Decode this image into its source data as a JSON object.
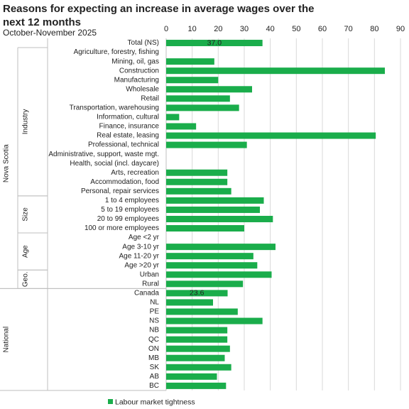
{
  "chart_data": {
    "type": "bar",
    "orientation": "horizontal",
    "title": "Reasons for expecting an increase in average wages over the next 12 months",
    "subtitle": "October-November 2025",
    "xlim": [
      0,
      90
    ],
    "x_ticks": [
      0,
      10,
      20,
      30,
      40,
      50,
      60,
      70,
      80,
      90
    ],
    "grid": true,
    "legend_position": "bottom-left",
    "bar_color": "#1aad4b",
    "groups": [
      {
        "level": 1,
        "label": "Nova Scotia",
        "start": 0,
        "end": 26
      },
      {
        "level": 1,
        "label": "National",
        "start": 27,
        "end": 37
      },
      {
        "level": 2,
        "label": "Industry",
        "start": 1,
        "end": 16
      },
      {
        "level": 2,
        "label": "Size",
        "start": 17,
        "end": 20
      },
      {
        "level": 2,
        "label": "Age",
        "start": 21,
        "end": 24
      },
      {
        "level": 2,
        "label": "Geo.",
        "start": 25,
        "end": 26
      }
    ],
    "categories": [
      "Total (NS)",
      "Agriculture, forestry, fishing",
      "Mining, oil, gas",
      "Construction",
      "Manufacturing",
      "Wholesale",
      "Retail",
      "Transportation, warehousing",
      "Information, cultural",
      "Finance, insurance",
      "Real estate, leasing",
      "Professional, technical",
      "Administrative, support, waste mgt.",
      "Health, social (incl. daycare)",
      "Arts, recreation",
      "Accommodation, food",
      "Personal, repair services",
      "1 to 4 employees",
      "5 to 19 employees",
      "20 to 99 employees",
      "100 or more employees",
      "Age <2 yr",
      "Age 3-10 yr",
      "Age 11-20 yr",
      "Age >20 yr",
      "Urban",
      "Rural",
      "Canada",
      "NL",
      "PE",
      "NS",
      "NB",
      "QC",
      "ON",
      "MB",
      "SK",
      "AB",
      "BC"
    ],
    "series": [
      {
        "name": "Labour market tightness",
        "values": [
          37.0,
          null,
          18.5,
          84.0,
          20.0,
          33.0,
          24.5,
          28.0,
          5.0,
          11.5,
          80.5,
          31.0,
          null,
          null,
          23.5,
          23.5,
          25.0,
          37.5,
          36.0,
          41.0,
          30.0,
          null,
          42.0,
          33.5,
          35.0,
          40.5,
          29.5,
          23.6,
          18.0,
          27.5,
          37.0,
          23.5,
          23.5,
          24.5,
          22.5,
          25.0,
          19.5,
          23.0
        ]
      }
    ],
    "data_labels": [
      {
        "index": 0,
        "text": "37.0"
      },
      {
        "index": 27,
        "text": "23.6"
      }
    ]
  }
}
